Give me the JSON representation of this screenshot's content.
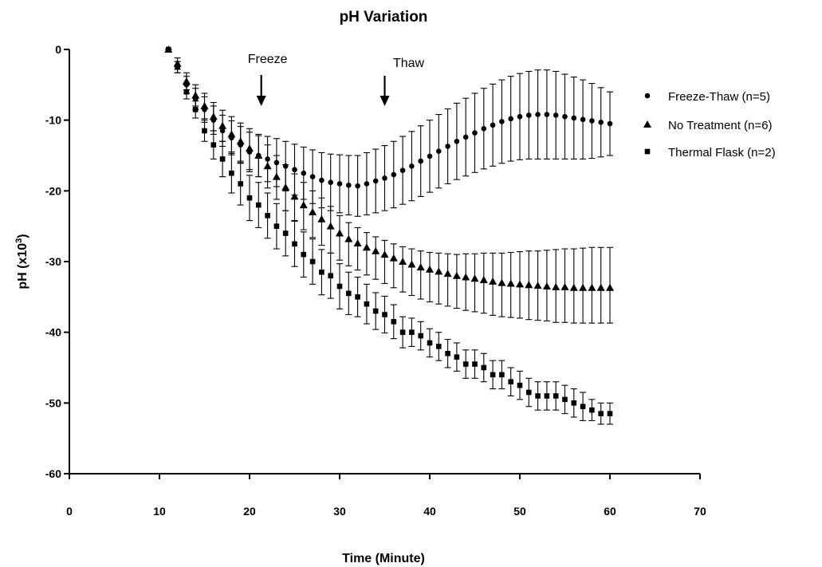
{
  "chart_data": {
    "type": "scatter",
    "title": "pH Variation",
    "xlabel": "Time (Minute)",
    "ylabel_main": "pH (x10",
    "ylabel_sup": "3",
    "ylabel_close": ")",
    "xlim": [
      0,
      70
    ],
    "ylim": [
      -60,
      0
    ],
    "x_ticks": [
      0,
      10,
      20,
      30,
      40,
      50,
      60,
      70
    ],
    "y_ticks": [
      0,
      -10,
      -20,
      -30,
      -40,
      -50,
      -60
    ],
    "grid": false,
    "legend_position": "right",
    "x": [
      11,
      12,
      13,
      14,
      15,
      16,
      17,
      18,
      19,
      20,
      21,
      22,
      23,
      24,
      25,
      26,
      27,
      28,
      29,
      30,
      31,
      32,
      33,
      34,
      35,
      36,
      37,
      38,
      39,
      40,
      41,
      42,
      43,
      44,
      45,
      46,
      47,
      48,
      49,
      50,
      51,
      52,
      53,
      54,
      55,
      56,
      57,
      58,
      59,
      60
    ],
    "series": [
      {
        "name": "Freeze-Thaw (n=5)",
        "marker": "circle",
        "values": [
          0,
          -2.5,
          -5,
          -7,
          -8.5,
          -10,
          -11.5,
          -12.5,
          -13.5,
          -14.5,
          -15,
          -15.5,
          -16,
          -16.5,
          -17,
          -17.5,
          -18,
          -18.5,
          -18.8,
          -19,
          -19.2,
          -19.3,
          -19,
          -18.6,
          -18.2,
          -17.7,
          -17.1,
          -16.5,
          -15.8,
          -15.1,
          -14.4,
          -13.7,
          -13,
          -12.4,
          -11.8,
          -11.2,
          -10.7,
          -10.2,
          -9.8,
          -9.5,
          -9.3,
          -9.2,
          -9.2,
          -9.3,
          -9.5,
          -9.7,
          -9.9,
          -10.1,
          -10.3,
          -10.5
        ],
        "errors": [
          0,
          0.8,
          1.2,
          1.5,
          1.8,
          2,
          2.2,
          2.4,
          2.6,
          2.8,
          3,
          3.2,
          3.4,
          3.5,
          3.6,
          3.7,
          3.8,
          3.9,
          4,
          4.1,
          4.2,
          4.3,
          4.4,
          4.5,
          4.6,
          4.7,
          4.8,
          4.9,
          5,
          5.1,
          5.2,
          5.3,
          5.4,
          5.5,
          5.6,
          5.7,
          5.8,
          5.9,
          6,
          6.1,
          6.2,
          6.3,
          6.3,
          6.2,
          6,
          5.8,
          5.6,
          5.3,
          4.9,
          4.5
        ]
      },
      {
        "name": "No Treatment (n=6)",
        "marker": "triangle",
        "values": [
          0,
          -2,
          -4.5,
          -6.5,
          -8,
          -9.5,
          -10.8,
          -12,
          -13,
          -14,
          -15,
          -16.5,
          -18,
          -19.5,
          -20.8,
          -22,
          -23,
          -24,
          -25,
          -26,
          -26.8,
          -27.4,
          -28,
          -28.5,
          -29,
          -29.5,
          -30,
          -30.4,
          -30.8,
          -31.1,
          -31.4,
          -31.7,
          -32,
          -32.2,
          -32.4,
          -32.6,
          -32.8,
          -33,
          -33.1,
          -33.2,
          -33.3,
          -33.4,
          -33.5,
          -33.6,
          -33.6,
          -33.7,
          -33.7,
          -33.7,
          -33.7,
          -33.7
        ]
      },
      {
        "name": "Thermal Flask (n=2)",
        "marker": "square",
        "values": [
          0,
          -2.5,
          -6,
          -8.5,
          -11.5,
          -13.5,
          -15.5,
          -17.5,
          -19,
          -21,
          -22,
          -23.5,
          -25,
          -26,
          -27.5,
          -29,
          -30,
          -31.5,
          -32,
          -33.5,
          -34.5,
          -35,
          -36,
          -37,
          -37.5,
          -38.5,
          -40,
          -40,
          -40.5,
          -41.5,
          -42,
          -43,
          -43.5,
          -44.5,
          -44.5,
          -45,
          -46,
          -46,
          -47,
          -47.5,
          -48.5,
          -49,
          -49,
          -49,
          -49.5,
          -50,
          -50.5,
          -51,
          -51.5,
          -51.5
        ],
        "errors": [
          0,
          0.8,
          1,
          1.2,
          1.5,
          2,
          2.5,
          2.8,
          3,
          3.2,
          3.2,
          3.2,
          3.2,
          3.2,
          3.2,
          3.2,
          3.2,
          3.2,
          3.2,
          3.2,
          3,
          2.8,
          2.8,
          2.6,
          2.6,
          2.4,
          2.2,
          2,
          2,
          2,
          2,
          2,
          2,
          2,
          2,
          2,
          2,
          2,
          2,
          2,
          2,
          2,
          2,
          2,
          2,
          2,
          2,
          1.5,
          1.5,
          1.5
        ]
      }
    ],
    "no_treatment_error_lower": [
      0,
      0.8,
      1.2,
      1.5,
      1.8,
      2,
      2.2,
      2.5,
      2.8,
      3,
      3,
      3.1,
      3.2,
      3.3,
      3.4,
      3.5,
      3.6,
      3.7,
      3.8,
      3.8,
      3.8,
      3.8,
      3.9,
      4,
      4.1,
      4.2,
      4.3,
      4.4,
      4.5,
      4.6,
      4.6,
      4.6,
      4.6,
      4.7,
      4.7,
      4.7,
      4.8,
      4.8,
      4.8,
      4.8,
      4.9,
      4.9,
      4.9,
      5,
      5,
      5,
      5,
      5,
      5,
      5
    ],
    "no_treatment_error_upper": [
      0,
      0.8,
      1.2,
      1.5,
      1.8,
      2,
      2.2,
      2.5,
      2.6,
      2.8,
      2.8,
      3,
      3,
      3.2,
      3.2,
      3.2,
      3,
      3,
      2.8,
      2.5,
      2.3,
      2.2,
      2.1,
      2,
      2,
      2,
      2.1,
      2.2,
      2.3,
      2.4,
      2.6,
      2.8,
      3,
      3.3,
      3.5,
      3.8,
      4,
      4.2,
      4.4,
      4.6,
      4.8,
      4.9,
      5.1,
      5.3,
      5.4,
      5.5,
      5.6,
      5.7,
      5.7,
      5.7
    ],
    "annotations": [
      {
        "text": "Freeze",
        "x": 21.3
      },
      {
        "text": "Thaw",
        "x": 35
      }
    ]
  }
}
